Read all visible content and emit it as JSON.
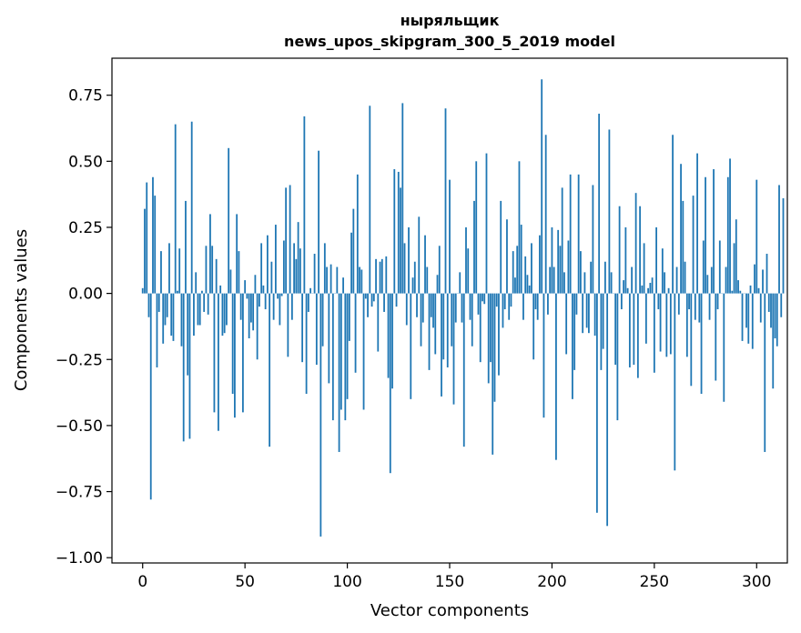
{
  "chart_data": {
    "type": "bar",
    "title_line1": "ныряльщик",
    "title_line2": "news_upos_skipgram_300_5_2019 model",
    "xlabel": "Vector components",
    "ylabel": "Components values",
    "xlim": [
      -15,
      315
    ],
    "ylim": [
      -1.02,
      0.89
    ],
    "xticks": [
      0,
      50,
      100,
      150,
      200,
      250,
      300
    ],
    "xtick_labels": [
      "0",
      "50",
      "100",
      "150",
      "200",
      "250",
      "300"
    ],
    "yticks": [
      -1.0,
      -0.75,
      -0.5,
      -0.25,
      0.0,
      0.25,
      0.5,
      0.75
    ],
    "ytick_labels": [
      "−1.00",
      "−0.75",
      "−0.50",
      "−0.25",
      "0.00",
      "0.25",
      "0.50",
      "0.75"
    ],
    "grid": false,
    "bar_color": "#1f77b4",
    "values": [
      0.02,
      0.32,
      0.42,
      -0.09,
      -0.78,
      0.44,
      0.37,
      -0.28,
      -0.07,
      0.16,
      -0.19,
      -0.12,
      -0.09,
      0.19,
      -0.16,
      -0.18,
      0.64,
      0.01,
      0.17,
      -0.2,
      -0.56,
      0.35,
      -0.31,
      -0.55,
      0.65,
      -0.16,
      0.08,
      -0.12,
      -0.12,
      0.01,
      -0.07,
      0.18,
      -0.08,
      0.3,
      0.18,
      -0.45,
      0.13,
      -0.52,
      0.03,
      -0.16,
      -0.15,
      -0.12,
      0.55,
      0.09,
      -0.38,
      -0.47,
      0.3,
      0.16,
      -0.1,
      -0.45,
      0.05,
      -0.02,
      -0.17,
      -0.11,
      -0.14,
      0.07,
      -0.25,
      -0.05,
      0.19,
      0.03,
      -0.06,
      0.22,
      -0.58,
      0.12,
      -0.1,
      0.26,
      -0.02,
      -0.12,
      -0.01,
      0.2,
      0.4,
      -0.24,
      0.41,
      -0.1,
      0.19,
      0.13,
      0.27,
      0.17,
      -0.26,
      0.67,
      -0.38,
      -0.07,
      0.02,
      0.0,
      0.15,
      -0.27,
      0.54,
      -0.92,
      -0.2,
      0.19,
      0.1,
      -0.34,
      0.11,
      -0.48,
      0.0,
      0.1,
      -0.6,
      -0.44,
      0.06,
      -0.48,
      -0.4,
      -0.18,
      0.23,
      0.32,
      -0.3,
      0.45,
      0.1,
      0.09,
      -0.44,
      -0.02,
      -0.09,
      0.71,
      -0.05,
      -0.03,
      0.13,
      -0.22,
      0.12,
      0.13,
      -0.07,
      0.14,
      -0.32,
      -0.68,
      -0.36,
      0.47,
      -0.05,
      0.46,
      0.4,
      0.72,
      0.19,
      -0.12,
      0.25,
      -0.4,
      0.06,
      0.12,
      -0.09,
      0.29,
      -0.2,
      -0.11,
      0.22,
      0.1,
      -0.29,
      -0.09,
      -0.13,
      -0.23,
      0.07,
      0.18,
      -0.39,
      -0.25,
      0.7,
      -0.28,
      0.43,
      -0.2,
      -0.42,
      -0.11,
      0.0,
      0.08,
      -0.11,
      -0.58,
      0.25,
      0.17,
      -0.1,
      -0.2,
      0.35,
      0.5,
      -0.08,
      -0.26,
      -0.03,
      -0.04,
      0.53,
      -0.34,
      -0.26,
      -0.61,
      -0.41,
      -0.05,
      -0.31,
      0.35,
      -0.13,
      -0.06,
      0.28,
      -0.1,
      -0.05,
      0.16,
      0.06,
      0.18,
      0.5,
      0.26,
      -0.1,
      0.14,
      0.07,
      0.03,
      0.19,
      -0.25,
      -0.06,
      -0.1,
      0.22,
      0.81,
      -0.47,
      0.6,
      -0.08,
      0.1,
      0.25,
      0.1,
      -0.63,
      0.24,
      0.18,
      0.4,
      0.08,
      -0.23,
      0.2,
      0.45,
      -0.4,
      -0.29,
      -0.08,
      0.45,
      0.16,
      -0.15,
      0.08,
      -0.13,
      -0.15,
      0.12,
      0.41,
      -0.16,
      -0.83,
      0.68,
      -0.29,
      -0.21,
      0.12,
      -0.88,
      0.62,
      0.08,
      0.0,
      -0.27,
      -0.48,
      0.33,
      -0.06,
      0.05,
      0.25,
      0.02,
      -0.28,
      0.1,
      -0.27,
      0.38,
      -0.32,
      0.33,
      0.03,
      0.19,
      -0.19,
      0.02,
      0.04,
      0.06,
      -0.3,
      0.25,
      -0.06,
      -0.22,
      0.17,
      0.08,
      -0.24,
      0.02,
      -0.23,
      0.6,
      -0.67,
      0.1,
      -0.08,
      0.49,
      0.35,
      0.12,
      -0.24,
      -0.06,
      -0.35,
      0.37,
      -0.1,
      0.53,
      -0.11,
      -0.38,
      0.2,
      0.44,
      0.07,
      -0.1,
      0.1,
      0.47,
      -0.33,
      -0.06,
      0.2,
      0.0,
      -0.41,
      0.1,
      0.44,
      0.51,
      0.01,
      0.19,
      0.28,
      0.05,
      0.01,
      -0.18,
      0.0,
      -0.13,
      -0.19,
      0.03,
      -0.21,
      0.11,
      0.43,
      0.02,
      -0.11,
      0.09,
      -0.6,
      0.15,
      -0.07,
      -0.13,
      -0.36,
      -0.17,
      -0.2,
      0.41,
      -0.09,
      0.36
    ]
  }
}
